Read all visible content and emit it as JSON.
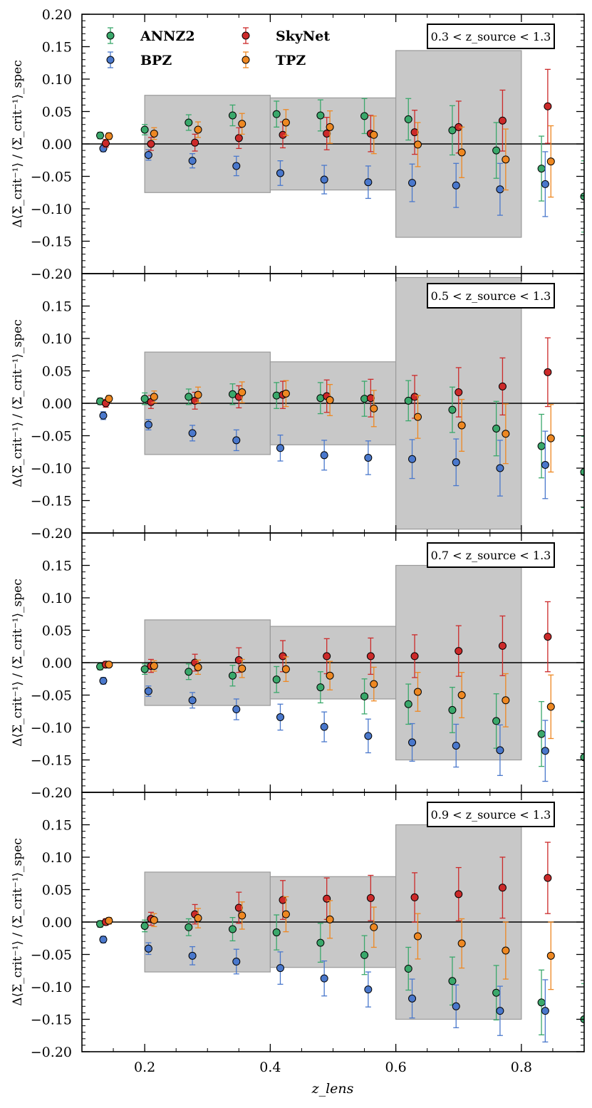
{
  "figure": {
    "xlabel": "z_lens",
    "ylabel": "Δ⟨Σ_crit⁻¹⟩ / ⟨Σ_crit⁻¹⟩_spec"
  },
  "colors": {
    "ANNZ2": "#3aa86b",
    "BPZ": "#4a78cc",
    "SkyNet": "#cc2a2a",
    "TPZ": "#ee8822",
    "band_fill": "#c8c8c8",
    "band_stroke": "#9a9a9a"
  },
  "chart_data": [
    {
      "type": "scatter",
      "title": "0.3 < z_source < 1.3",
      "xlabel": "",
      "ylabel": "Δ⟨Σ_crit⁻¹⟩ / ⟨Σ_crit⁻¹⟩_spec",
      "xlim": [
        0.1,
        0.9
      ],
      "ylim": [
        -0.2,
        0.2
      ],
      "xticks": [
        0.2,
        0.4,
        0.6,
        0.8
      ],
      "yticks": [
        -0.2,
        -0.15,
        -0.1,
        -0.05,
        0.0,
        0.05,
        0.1,
        0.15,
        0.2
      ],
      "ytick_labels": [
        "−0.20",
        "−0.15",
        "−0.10",
        "−0.05",
        "0.00",
        "0.05",
        "0.10",
        "0.15",
        "0.20"
      ],
      "legend": [
        "ANNZ2",
        "SkyNet",
        "BPZ",
        "TPZ"
      ],
      "bands": [
        {
          "x0": 0.2,
          "x1": 0.4,
          "half_height": 0.075
        },
        {
          "x0": 0.4,
          "x1": 0.6,
          "half_height": 0.071
        },
        {
          "x0": 0.6,
          "x1": 0.8,
          "half_height": 0.144
        }
      ],
      "series": [
        {
          "name": "ANNZ2",
          "x": [
            0.129,
            0.2,
            0.27,
            0.34,
            0.41,
            0.48,
            0.55,
            0.62,
            0.69,
            0.76,
            0.832,
            0.9
          ],
          "y": [
            0.013,
            0.022,
            0.033,
            0.044,
            0.046,
            0.044,
            0.043,
            0.038,
            0.021,
            -0.01,
            -0.038,
            -0.081
          ],
          "err": [
            0.005,
            0.008,
            0.012,
            0.016,
            0.02,
            0.024,
            0.027,
            0.032,
            0.038,
            0.043,
            0.05,
            0.055
          ]
        },
        {
          "name": "BPZ",
          "x": [
            0.134,
            0.206,
            0.276,
            0.346,
            0.416,
            0.486,
            0.556,
            0.626,
            0.696,
            0.766,
            0.838
          ],
          "y": [
            -0.007,
            -0.017,
            -0.026,
            -0.034,
            -0.045,
            -0.055,
            -0.059,
            -0.06,
            -0.064,
            -0.07,
            -0.062
          ],
          "err": [
            0.005,
            0.008,
            0.011,
            0.015,
            0.019,
            0.022,
            0.025,
            0.029,
            0.034,
            0.04,
            0.05
          ]
        },
        {
          "name": "SkyNet",
          "x": [
            0.138,
            0.21,
            0.28,
            0.35,
            0.42,
            0.49,
            0.56,
            0.63,
            0.7,
            0.77,
            0.842
          ],
          "y": [
            0.001,
            0.0,
            0.002,
            0.009,
            0.014,
            0.016,
            0.016,
            0.018,
            0.026,
            0.036,
            0.058
          ],
          "err": [
            0.006,
            0.01,
            0.013,
            0.016,
            0.02,
            0.025,
            0.028,
            0.034,
            0.04,
            0.047,
            0.057
          ]
        },
        {
          "name": "TPZ",
          "x": [
            0.143,
            0.215,
            0.285,
            0.355,
            0.425,
            0.495,
            0.565,
            0.635,
            0.705,
            0.775,
            0.847
          ],
          "y": [
            0.012,
            0.016,
            0.022,
            0.031,
            0.033,
            0.026,
            0.014,
            -0.001,
            -0.013,
            -0.024,
            -0.027
          ],
          "err": [
            0.005,
            0.009,
            0.012,
            0.016,
            0.02,
            0.025,
            0.029,
            0.034,
            0.039,
            0.047,
            0.055
          ]
        }
      ]
    },
    {
      "type": "scatter",
      "title": "0.5 < z_source < 1.3",
      "xlabel": "",
      "ylabel": "Δ⟨Σ_crit⁻¹⟩ / ⟨Σ_crit⁻¹⟩_spec",
      "xlim": [
        0.1,
        0.9
      ],
      "ylim": [
        -0.2,
        0.2
      ],
      "xticks": [
        0.2,
        0.4,
        0.6,
        0.8
      ],
      "yticks": [
        -0.2,
        -0.15,
        -0.1,
        -0.05,
        0.0,
        0.05,
        0.1,
        0.15
      ],
      "ytick_labels": [
        "−0.20",
        "−0.15",
        "−0.10",
        "−0.05",
        "0.00",
        "0.05",
        "0.10",
        "0.15"
      ],
      "bands": [
        {
          "x0": 0.2,
          "x1": 0.4,
          "half_height": 0.079
        },
        {
          "x0": 0.4,
          "x1": 0.6,
          "half_height": 0.064
        },
        {
          "x0": 0.6,
          "x1": 0.8,
          "half_height": 0.194
        }
      ],
      "series": [
        {
          "name": "ANNZ2",
          "x": [
            0.129,
            0.2,
            0.27,
            0.34,
            0.41,
            0.48,
            0.55,
            0.62,
            0.69,
            0.76,
            0.832,
            0.9
          ],
          "y": [
            0.003,
            0.007,
            0.01,
            0.014,
            0.012,
            0.008,
            0.007,
            0.004,
            -0.01,
            -0.039,
            -0.066,
            -0.106
          ],
          "err": [
            0.005,
            0.009,
            0.012,
            0.016,
            0.02,
            0.024,
            0.027,
            0.031,
            0.035,
            0.042,
            0.049,
            0.055
          ]
        },
        {
          "name": "BPZ",
          "x": [
            0.134,
            0.206,
            0.276,
            0.346,
            0.416,
            0.486,
            0.556,
            0.626,
            0.696,
            0.766,
            0.838
          ],
          "y": [
            -0.019,
            -0.033,
            -0.046,
            -0.057,
            -0.069,
            -0.08,
            -0.084,
            -0.086,
            -0.091,
            -0.1,
            -0.095
          ],
          "err": [
            0.006,
            0.008,
            0.012,
            0.016,
            0.02,
            0.023,
            0.026,
            0.03,
            0.036,
            0.043,
            0.052
          ]
        },
        {
          "name": "SkyNet",
          "x": [
            0.138,
            0.21,
            0.28,
            0.35,
            0.42,
            0.49,
            0.56,
            0.63,
            0.7,
            0.77,
            0.842
          ],
          "y": [
            0.0,
            0.002,
            0.004,
            0.01,
            0.013,
            0.011,
            0.008,
            0.01,
            0.017,
            0.026,
            0.048
          ],
          "err": [
            0.006,
            0.01,
            0.013,
            0.017,
            0.021,
            0.025,
            0.029,
            0.033,
            0.038,
            0.044,
            0.053
          ]
        },
        {
          "name": "TPZ",
          "x": [
            0.143,
            0.215,
            0.285,
            0.355,
            0.425,
            0.495,
            0.565,
            0.635,
            0.705,
            0.775,
            0.847
          ],
          "y": [
            0.007,
            0.01,
            0.013,
            0.017,
            0.015,
            0.005,
            -0.008,
            -0.021,
            -0.034,
            -0.047,
            -0.054
          ],
          "err": [
            0.005,
            0.009,
            0.012,
            0.016,
            0.02,
            0.024,
            0.028,
            0.033,
            0.04,
            0.046,
            0.052
          ]
        }
      ]
    },
    {
      "type": "scatter",
      "title": "0.7 < z_source < 1.3",
      "xlabel": "",
      "ylabel": "Δ⟨Σ_crit⁻¹⟩ / ⟨Σ_crit⁻¹⟩_spec",
      "xlim": [
        0.1,
        0.9
      ],
      "ylim": [
        -0.2,
        0.2
      ],
      "xticks": [
        0.2,
        0.4,
        0.6,
        0.8
      ],
      "yticks": [
        -0.2,
        -0.15,
        -0.1,
        -0.05,
        0.0,
        0.05,
        0.1,
        0.15
      ],
      "ytick_labels": [
        "−0.20",
        "−0.15",
        "−0.10",
        "−0.05",
        "0.00",
        "0.05",
        "0.10",
        "0.15"
      ],
      "bands": [
        {
          "x0": 0.2,
          "x1": 0.4,
          "half_height": 0.066
        },
        {
          "x0": 0.4,
          "x1": 0.6,
          "half_height": 0.056
        },
        {
          "x0": 0.6,
          "x1": 0.8,
          "half_height": 0.15
        }
      ],
      "series": [
        {
          "name": "ANNZ2",
          "x": [
            0.129,
            0.2,
            0.27,
            0.34,
            0.41,
            0.48,
            0.55,
            0.62,
            0.69,
            0.76,
            0.832,
            0.9
          ],
          "y": [
            -0.006,
            -0.01,
            -0.014,
            -0.02,
            -0.026,
            -0.038,
            -0.052,
            -0.064,
            -0.073,
            -0.09,
            -0.11,
            -0.146
          ],
          "err": [
            0.005,
            0.008,
            0.012,
            0.016,
            0.02,
            0.024,
            0.027,
            0.031,
            0.035,
            0.042,
            0.05,
            0.055
          ]
        },
        {
          "name": "BPZ",
          "x": [
            0.134,
            0.206,
            0.276,
            0.346,
            0.416,
            0.486,
            0.556,
            0.626,
            0.696,
            0.766,
            0.838
          ],
          "y": [
            -0.028,
            -0.044,
            -0.058,
            -0.072,
            -0.084,
            -0.099,
            -0.113,
            -0.123,
            -0.128,
            -0.135,
            -0.136
          ],
          "err": [
            0.005,
            0.008,
            0.012,
            0.016,
            0.02,
            0.023,
            0.026,
            0.029,
            0.033,
            0.039,
            0.047
          ]
        },
        {
          "name": "SkyNet",
          "x": [
            0.138,
            0.21,
            0.28,
            0.35,
            0.42,
            0.49,
            0.56,
            0.63,
            0.7,
            0.77,
            0.842
          ],
          "y": [
            -0.003,
            -0.005,
            0.0,
            0.004,
            0.01,
            0.01,
            0.01,
            0.01,
            0.018,
            0.026,
            0.04
          ],
          "err": [
            0.005,
            0.01,
            0.013,
            0.019,
            0.024,
            0.027,
            0.028,
            0.033,
            0.039,
            0.046,
            0.054
          ]
        },
        {
          "name": "TPZ",
          "x": [
            0.143,
            0.215,
            0.285,
            0.355,
            0.425,
            0.495,
            0.565,
            0.635,
            0.705,
            0.775,
            0.847
          ],
          "y": [
            -0.003,
            -0.005,
            -0.007,
            -0.009,
            -0.01,
            -0.02,
            -0.033,
            -0.045,
            -0.05,
            -0.058,
            -0.068
          ],
          "err": [
            0.004,
            0.008,
            0.011,
            0.014,
            0.019,
            0.022,
            0.026,
            0.03,
            0.035,
            0.041,
            0.049
          ]
        }
      ]
    },
    {
      "type": "scatter",
      "title": "0.9 < z_source < 1.3",
      "xlabel": "z_lens",
      "ylabel": "Δ⟨Σ_crit⁻¹⟩ / ⟨Σ_crit⁻¹⟩_spec",
      "xlim": [
        0.1,
        0.9
      ],
      "ylim": [
        -0.2,
        0.2
      ],
      "xticks": [
        0.2,
        0.4,
        0.6,
        0.8
      ],
      "xtick_labels": [
        "0.2",
        "0.4",
        "0.6",
        "0.8"
      ],
      "yticks": [
        -0.2,
        -0.15,
        -0.1,
        -0.05,
        0.0,
        0.05,
        0.1,
        0.15
      ],
      "ytick_labels": [
        "−0.20",
        "−0.15",
        "−0.10",
        "−0.05",
        "0.00",
        "0.05",
        "0.10",
        "0.15"
      ],
      "bands": [
        {
          "x0": 0.2,
          "x1": 0.4,
          "half_height": 0.077
        },
        {
          "x0": 0.4,
          "x1": 0.6,
          "half_height": 0.07
        },
        {
          "x0": 0.6,
          "x1": 0.8,
          "half_height": 0.15
        }
      ],
      "series": [
        {
          "name": "ANNZ2",
          "x": [
            0.129,
            0.2,
            0.27,
            0.34,
            0.41,
            0.48,
            0.55,
            0.62,
            0.69,
            0.76,
            0.832,
            0.9
          ],
          "y": [
            -0.003,
            -0.006,
            -0.008,
            -0.011,
            -0.016,
            -0.032,
            -0.051,
            -0.072,
            -0.091,
            -0.109,
            -0.124,
            -0.15
          ],
          "err": [
            0.005,
            0.009,
            0.013,
            0.018,
            0.027,
            0.03,
            0.03,
            0.033,
            0.037,
            0.042,
            0.05,
            0.055
          ]
        },
        {
          "name": "BPZ",
          "x": [
            0.134,
            0.206,
            0.276,
            0.346,
            0.416,
            0.486,
            0.556,
            0.626,
            0.696,
            0.766,
            0.838
          ],
          "y": [
            -0.027,
            -0.041,
            -0.052,
            -0.061,
            -0.071,
            -0.087,
            -0.104,
            -0.118,
            -0.13,
            -0.137,
            -0.137
          ],
          "err": [
            0.005,
            0.009,
            0.014,
            0.019,
            0.025,
            0.027,
            0.027,
            0.03,
            0.033,
            0.038,
            0.048
          ]
        },
        {
          "name": "SkyNet",
          "x": [
            0.138,
            0.21,
            0.28,
            0.35,
            0.42,
            0.49,
            0.56,
            0.63,
            0.7,
            0.77,
            0.842
          ],
          "y": [
            0.0,
            0.005,
            0.012,
            0.022,
            0.034,
            0.036,
            0.037,
            0.038,
            0.043,
            0.053,
            0.068
          ],
          "err": [
            0.005,
            0.01,
            0.015,
            0.024,
            0.03,
            0.032,
            0.035,
            0.038,
            0.041,
            0.047,
            0.055
          ]
        },
        {
          "name": "TPZ",
          "x": [
            0.143,
            0.215,
            0.285,
            0.355,
            0.425,
            0.495,
            0.565,
            0.635,
            0.705,
            0.775,
            0.847
          ],
          "y": [
            0.002,
            0.003,
            0.006,
            0.01,
            0.012,
            0.004,
            -0.008,
            -0.022,
            -0.033,
            -0.044,
            -0.052
          ],
          "err": [
            0.005,
            0.01,
            0.015,
            0.021,
            0.027,
            0.029,
            0.031,
            0.035,
            0.038,
            0.044,
            0.052
          ]
        }
      ]
    }
  ]
}
